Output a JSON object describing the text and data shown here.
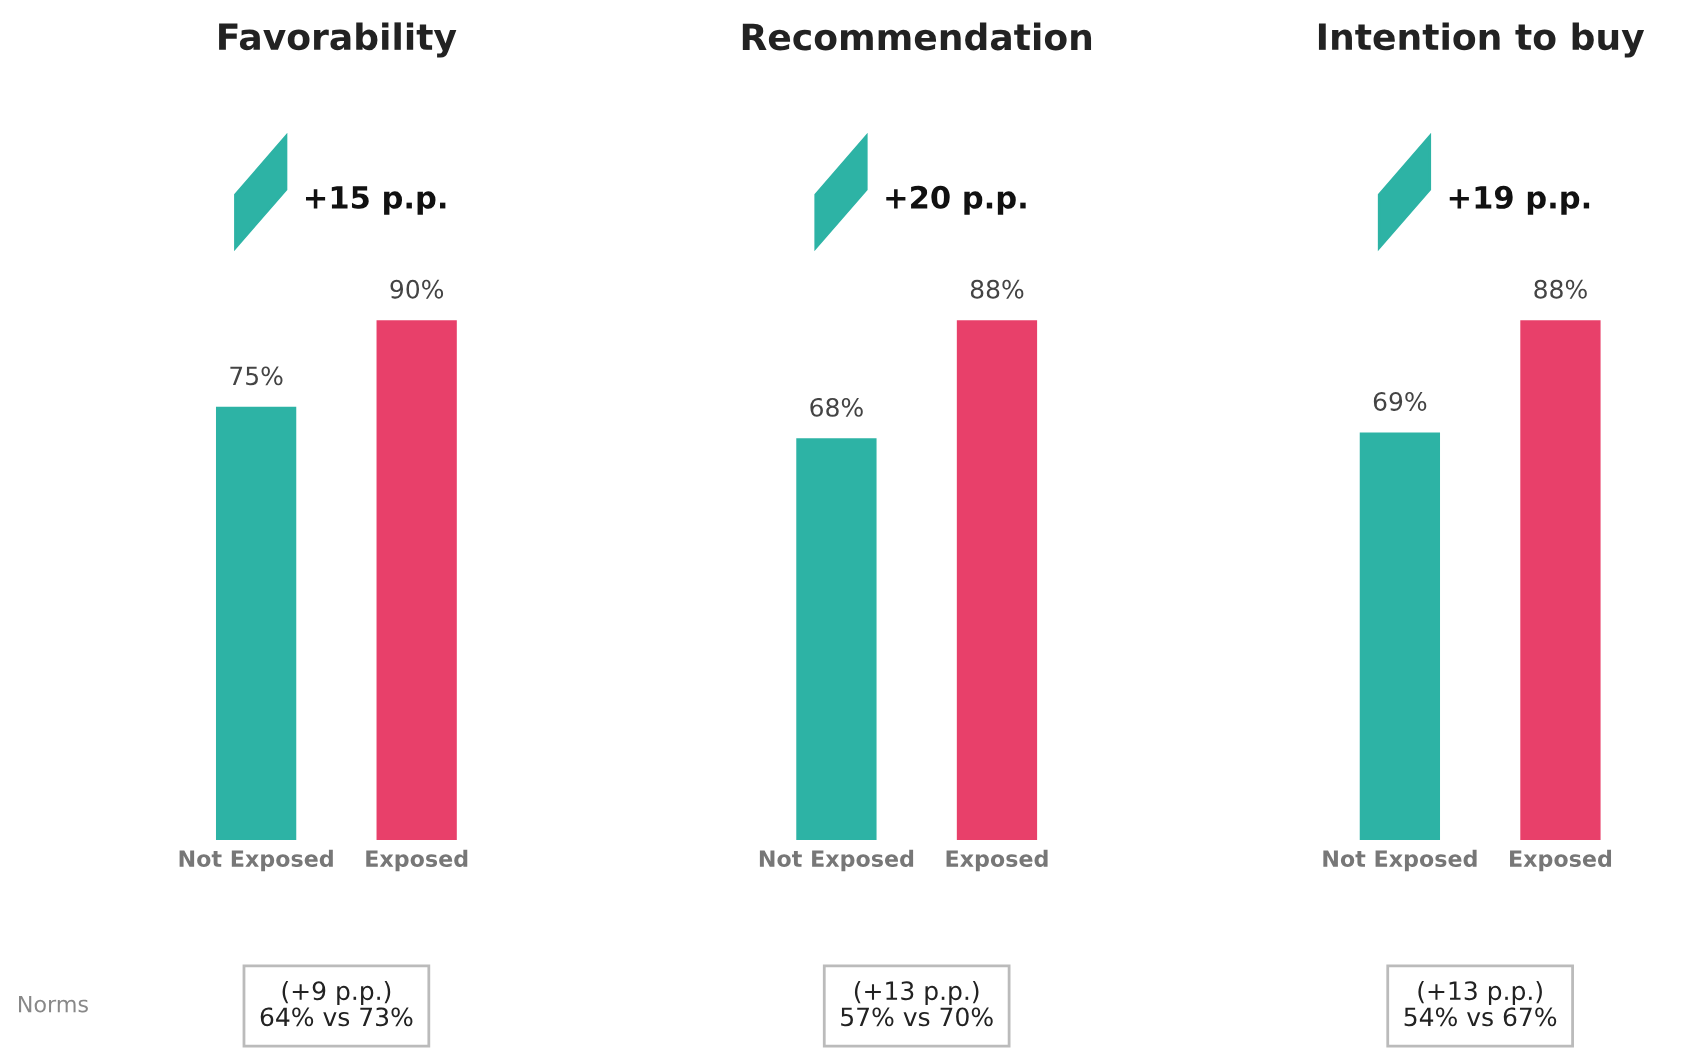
{
  "chart_data": [
    {
      "type": "bar",
      "title": "Favorability",
      "categories": [
        "Not Exposed",
        "Exposed"
      ],
      "values": [
        75,
        90
      ],
      "colors": [
        "#2db3a5",
        "#e8406a"
      ],
      "value_labels": [
        "75%",
        "90%"
      ],
      "annotations": [
        "+15 p.p.",
        "(+9 p.p.)\n64% vs 73%",
        "Norms"
      ]
    },
    {
      "type": "bar",
      "title": "Recommendation",
      "categories": [
        "Not Exposed",
        "Exposed"
      ],
      "values": [
        68,
        88
      ],
      "colors": [
        "#2db3a5",
        "#e8406a"
      ],
      "value_labels": [
        "68%",
        "88%"
      ],
      "annotations": [
        "+20 p.p.",
        "(+13 p.p.)\n57% vs 70%"
      ]
    },
    {
      "type": "bar",
      "title": "Intention to buy",
      "categories": [
        "Not Exposed",
        "Exposed"
      ],
      "values": [
        69,
        88
      ],
      "colors": [
        "#2db3a5",
        "#e8406a"
      ],
      "value_labels": [
        "69%",
        "88%"
      ],
      "annotations": [
        "+19 p.p.",
        "(+13 p.p.)\n54% vs 67%"
      ]
    }
  ]
}
